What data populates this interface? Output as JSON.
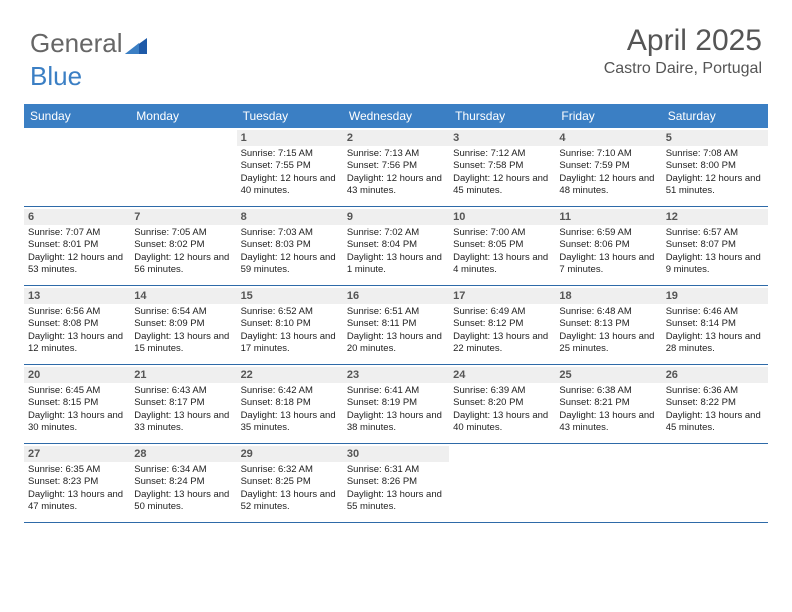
{
  "logo": {
    "part1": "General",
    "part2": "Blue"
  },
  "title": "April 2025",
  "location": "Castro Daire, Portugal",
  "colors": {
    "header_bg": "#3b7fc4",
    "header_text": "#ffffff",
    "daynum_bg": "#efefef",
    "week_border": "#2e6aa8",
    "title_color": "#555555",
    "body_text": "#222222"
  },
  "day_headers": [
    "Sunday",
    "Monday",
    "Tuesday",
    "Wednesday",
    "Thursday",
    "Friday",
    "Saturday"
  ],
  "weeks": [
    [
      {
        "n": "",
        "sr": "",
        "ss": "",
        "dl": ""
      },
      {
        "n": "",
        "sr": "",
        "ss": "",
        "dl": ""
      },
      {
        "n": "1",
        "sr": "Sunrise: 7:15 AM",
        "ss": "Sunset: 7:55 PM",
        "dl": "Daylight: 12 hours and 40 minutes."
      },
      {
        "n": "2",
        "sr": "Sunrise: 7:13 AM",
        "ss": "Sunset: 7:56 PM",
        "dl": "Daylight: 12 hours and 43 minutes."
      },
      {
        "n": "3",
        "sr": "Sunrise: 7:12 AM",
        "ss": "Sunset: 7:58 PM",
        "dl": "Daylight: 12 hours and 45 minutes."
      },
      {
        "n": "4",
        "sr": "Sunrise: 7:10 AM",
        "ss": "Sunset: 7:59 PM",
        "dl": "Daylight: 12 hours and 48 minutes."
      },
      {
        "n": "5",
        "sr": "Sunrise: 7:08 AM",
        "ss": "Sunset: 8:00 PM",
        "dl": "Daylight: 12 hours and 51 minutes."
      }
    ],
    [
      {
        "n": "6",
        "sr": "Sunrise: 7:07 AM",
        "ss": "Sunset: 8:01 PM",
        "dl": "Daylight: 12 hours and 53 minutes."
      },
      {
        "n": "7",
        "sr": "Sunrise: 7:05 AM",
        "ss": "Sunset: 8:02 PM",
        "dl": "Daylight: 12 hours and 56 minutes."
      },
      {
        "n": "8",
        "sr": "Sunrise: 7:03 AM",
        "ss": "Sunset: 8:03 PM",
        "dl": "Daylight: 12 hours and 59 minutes."
      },
      {
        "n": "9",
        "sr": "Sunrise: 7:02 AM",
        "ss": "Sunset: 8:04 PM",
        "dl": "Daylight: 13 hours and 1 minute."
      },
      {
        "n": "10",
        "sr": "Sunrise: 7:00 AM",
        "ss": "Sunset: 8:05 PM",
        "dl": "Daylight: 13 hours and 4 minutes."
      },
      {
        "n": "11",
        "sr": "Sunrise: 6:59 AM",
        "ss": "Sunset: 8:06 PM",
        "dl": "Daylight: 13 hours and 7 minutes."
      },
      {
        "n": "12",
        "sr": "Sunrise: 6:57 AM",
        "ss": "Sunset: 8:07 PM",
        "dl": "Daylight: 13 hours and 9 minutes."
      }
    ],
    [
      {
        "n": "13",
        "sr": "Sunrise: 6:56 AM",
        "ss": "Sunset: 8:08 PM",
        "dl": "Daylight: 13 hours and 12 minutes."
      },
      {
        "n": "14",
        "sr": "Sunrise: 6:54 AM",
        "ss": "Sunset: 8:09 PM",
        "dl": "Daylight: 13 hours and 15 minutes."
      },
      {
        "n": "15",
        "sr": "Sunrise: 6:52 AM",
        "ss": "Sunset: 8:10 PM",
        "dl": "Daylight: 13 hours and 17 minutes."
      },
      {
        "n": "16",
        "sr": "Sunrise: 6:51 AM",
        "ss": "Sunset: 8:11 PM",
        "dl": "Daylight: 13 hours and 20 minutes."
      },
      {
        "n": "17",
        "sr": "Sunrise: 6:49 AM",
        "ss": "Sunset: 8:12 PM",
        "dl": "Daylight: 13 hours and 22 minutes."
      },
      {
        "n": "18",
        "sr": "Sunrise: 6:48 AM",
        "ss": "Sunset: 8:13 PM",
        "dl": "Daylight: 13 hours and 25 minutes."
      },
      {
        "n": "19",
        "sr": "Sunrise: 6:46 AM",
        "ss": "Sunset: 8:14 PM",
        "dl": "Daylight: 13 hours and 28 minutes."
      }
    ],
    [
      {
        "n": "20",
        "sr": "Sunrise: 6:45 AM",
        "ss": "Sunset: 8:15 PM",
        "dl": "Daylight: 13 hours and 30 minutes."
      },
      {
        "n": "21",
        "sr": "Sunrise: 6:43 AM",
        "ss": "Sunset: 8:17 PM",
        "dl": "Daylight: 13 hours and 33 minutes."
      },
      {
        "n": "22",
        "sr": "Sunrise: 6:42 AM",
        "ss": "Sunset: 8:18 PM",
        "dl": "Daylight: 13 hours and 35 minutes."
      },
      {
        "n": "23",
        "sr": "Sunrise: 6:41 AM",
        "ss": "Sunset: 8:19 PM",
        "dl": "Daylight: 13 hours and 38 minutes."
      },
      {
        "n": "24",
        "sr": "Sunrise: 6:39 AM",
        "ss": "Sunset: 8:20 PM",
        "dl": "Daylight: 13 hours and 40 minutes."
      },
      {
        "n": "25",
        "sr": "Sunrise: 6:38 AM",
        "ss": "Sunset: 8:21 PM",
        "dl": "Daylight: 13 hours and 43 minutes."
      },
      {
        "n": "26",
        "sr": "Sunrise: 6:36 AM",
        "ss": "Sunset: 8:22 PM",
        "dl": "Daylight: 13 hours and 45 minutes."
      }
    ],
    [
      {
        "n": "27",
        "sr": "Sunrise: 6:35 AM",
        "ss": "Sunset: 8:23 PM",
        "dl": "Daylight: 13 hours and 47 minutes."
      },
      {
        "n": "28",
        "sr": "Sunrise: 6:34 AM",
        "ss": "Sunset: 8:24 PM",
        "dl": "Daylight: 13 hours and 50 minutes."
      },
      {
        "n": "29",
        "sr": "Sunrise: 6:32 AM",
        "ss": "Sunset: 8:25 PM",
        "dl": "Daylight: 13 hours and 52 minutes."
      },
      {
        "n": "30",
        "sr": "Sunrise: 6:31 AM",
        "ss": "Sunset: 8:26 PM",
        "dl": "Daylight: 13 hours and 55 minutes."
      },
      {
        "n": "",
        "sr": "",
        "ss": "",
        "dl": ""
      },
      {
        "n": "",
        "sr": "",
        "ss": "",
        "dl": ""
      },
      {
        "n": "",
        "sr": "",
        "ss": "",
        "dl": ""
      }
    ]
  ]
}
